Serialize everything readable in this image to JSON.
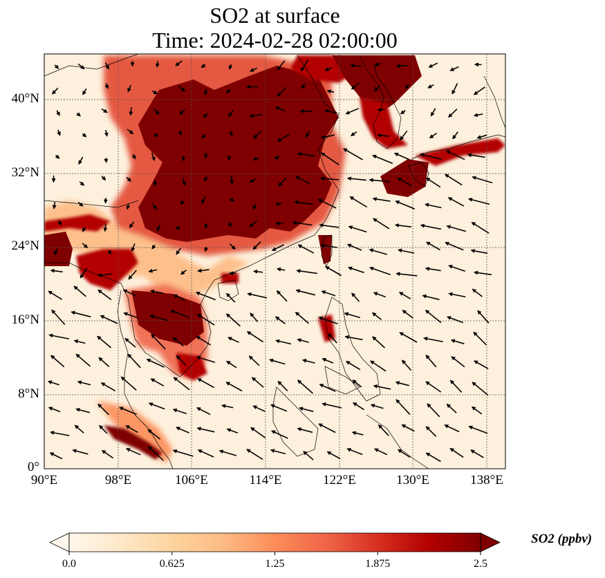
{
  "title_line1": "SO2 at surface",
  "title_line2": "Time: 2024-02-28 02:00:00",
  "map": {
    "lon_range": [
      90,
      140
    ],
    "lat_range": [
      0,
      45
    ],
    "lat_ticks": [
      {
        "value": 0,
        "label": "0°"
      },
      {
        "value": 8,
        "label": "8°N"
      },
      {
        "value": 16,
        "label": "16°N"
      },
      {
        "value": 24,
        "label": "24°N"
      },
      {
        "value": 32,
        "label": "32°N"
      },
      {
        "value": 40,
        "label": "40°N"
      }
    ],
    "lon_ticks": [
      {
        "value": 90,
        "label": "90°E"
      },
      {
        "value": 98,
        "label": "98°E"
      },
      {
        "value": 106,
        "label": "106°E"
      },
      {
        "value": 114,
        "label": "114°E"
      },
      {
        "value": 122,
        "label": "122°E"
      },
      {
        "value": 130,
        "label": "130°E"
      },
      {
        "value": 138,
        "label": "138°E"
      }
    ],
    "gridlines": true,
    "colormap": "OrRd"
  },
  "colorbar": {
    "label": "SO2 (ppbv)",
    "min": 0,
    "max": 2.5,
    "extend": "both",
    "ticks": [
      {
        "value": 0,
        "label": "0.0"
      },
      {
        "value": 0.625,
        "label": "0.625"
      },
      {
        "value": 1.25,
        "label": "1.25"
      },
      {
        "value": 1.875,
        "label": "1.875"
      },
      {
        "value": 2.5,
        "label": "2.5"
      }
    ],
    "colors": [
      "#fff7ec",
      "#fee8c8",
      "#fdd49e",
      "#fdbb84",
      "#fc8d59",
      "#ef6548",
      "#d7301f",
      "#b30000",
      "#7f0000"
    ]
  }
}
